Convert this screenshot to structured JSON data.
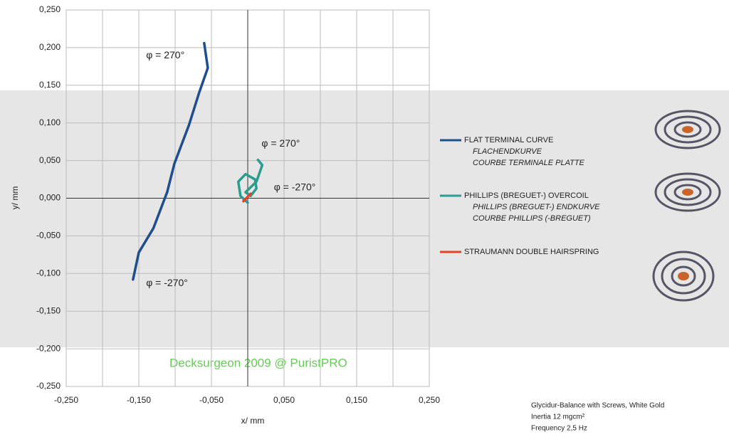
{
  "chart_data": {
    "type": "line",
    "x_label": "x/ mm",
    "y_label": "y/ mm",
    "xlim": [
      -0.25,
      0.25
    ],
    "ylim": [
      -0.25,
      0.25
    ],
    "xticks": [
      {
        "value": -0.25,
        "label": "-0,250"
      },
      {
        "value": -0.15,
        "label": "-0,150"
      },
      {
        "value": -0.05,
        "label": "-0,050"
      },
      {
        "value": 0.05,
        "label": "0,050"
      },
      {
        "value": 0.15,
        "label": "0,150"
      },
      {
        "value": 0.25,
        "label": "0,250"
      }
    ],
    "x_minor_ticks": [
      -0.2,
      -0.1,
      0,
      0.1,
      0.2
    ],
    "yticks": [
      {
        "value": 0.25,
        "label": "0,250"
      },
      {
        "value": 0.2,
        "label": "0,200"
      },
      {
        "value": 0.15,
        "label": "0,150"
      },
      {
        "value": 0.1,
        "label": "0,100"
      },
      {
        "value": 0.05,
        "label": "0,050"
      },
      {
        "value": 0,
        "label": "0,000"
      },
      {
        "value": -0.05,
        "label": "-0,050"
      },
      {
        "value": -0.1,
        "label": "-0,100"
      },
      {
        "value": -0.15,
        "label": "-0,150"
      },
      {
        "value": -0.2,
        "label": "-0,200"
      },
      {
        "value": -0.25,
        "label": "-0,250"
      }
    ],
    "grid": true,
    "series": [
      {
        "name": "FLAT TERMINAL CURVE",
        "aliases": [
          "FLACHENDKURVE",
          "COURBE TERMINALE PLATTE"
        ],
        "color": "#1f4e8c",
        "x": [
          -0.158,
          -0.15,
          -0.13,
          -0.111,
          -0.101,
          -0.081,
          -0.067,
          -0.055,
          -0.06
        ],
        "values": [
          -0.108,
          -0.072,
          -0.04,
          0.008,
          0.046,
          0.097,
          0.14,
          0.173,
          0.206
        ]
      },
      {
        "name": "PHILLIPS (BREGUET-) OVERCOIL",
        "aliases": [
          "PHILLIPS (BREGUET-) ENDKURVE",
          "COURBE PHILLIPS (-BREGUET)"
        ],
        "color": "#2a9d8f",
        "x": [
          0,
          -0.01,
          -0.013,
          -0.003,
          0.01,
          0.012,
          0.004,
          -0.003,
          0.012,
          0.02,
          0.014
        ],
        "values": [
          -0.006,
          0.003,
          0.022,
          0.032,
          0.025,
          0.013,
          0.003,
          0.008,
          0.022,
          0.044,
          0.051
        ]
      },
      {
        "name": "STRAUMANN DOUBLE HAIRSPRING",
        "aliases": [],
        "color": "#e0452a",
        "x": [
          -0.006,
          0.004
        ],
        "values": [
          -0.004,
          0.006
        ]
      }
    ],
    "annotations": [
      {
        "text": "φ = 270°",
        "x": -0.14,
        "y": 0.189
      },
      {
        "text": "φ = -270°",
        "x": -0.14,
        "y": -0.113
      },
      {
        "text": "φ = 270°",
        "x": 0.019,
        "y": 0.072
      },
      {
        "text": "φ = -270°",
        "x": 0.036,
        "y": 0.014
      }
    ],
    "watermark": "Decksurgeon 2009 @ PuristPRO",
    "note": [
      "Glycidur-Balance with Screws, White Gold",
      "Inertia 12 mgcm²",
      "Frequency 2,5 Hz"
    ]
  }
}
